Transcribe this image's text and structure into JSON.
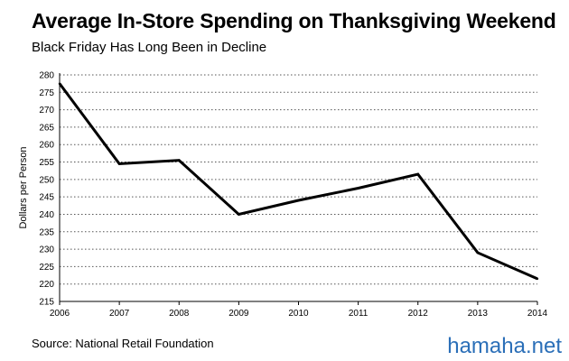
{
  "title": "Average In-Store Spending on Thanksgiving Weekend",
  "subtitle": "Black Friday Has Long Been in Decline",
  "source": "Source: National Retail Foundation",
  "watermark": "hamaha.net",
  "chart_data": {
    "type": "line",
    "x": [
      2006,
      2007,
      2008,
      2009,
      2010,
      2011,
      2012,
      2013,
      2014
    ],
    "series": [
      {
        "values": [
          277.5,
          254.5,
          255.5,
          240,
          244,
          247.5,
          251.5,
          229,
          221.5
        ]
      }
    ],
    "ylabel": "Dollars per Person",
    "xlabel": "",
    "ylim": [
      215,
      280
    ],
    "yticks": [
      215,
      220,
      225,
      230,
      235,
      240,
      245,
      250,
      255,
      260,
      265,
      270,
      275,
      280
    ],
    "xticks": [
      2006,
      2007,
      2008,
      2009,
      2010,
      2011,
      2012,
      2013,
      2014
    ],
    "grid": "horizontal dotted",
    "legend": "none",
    "line_color": "#000000"
  }
}
